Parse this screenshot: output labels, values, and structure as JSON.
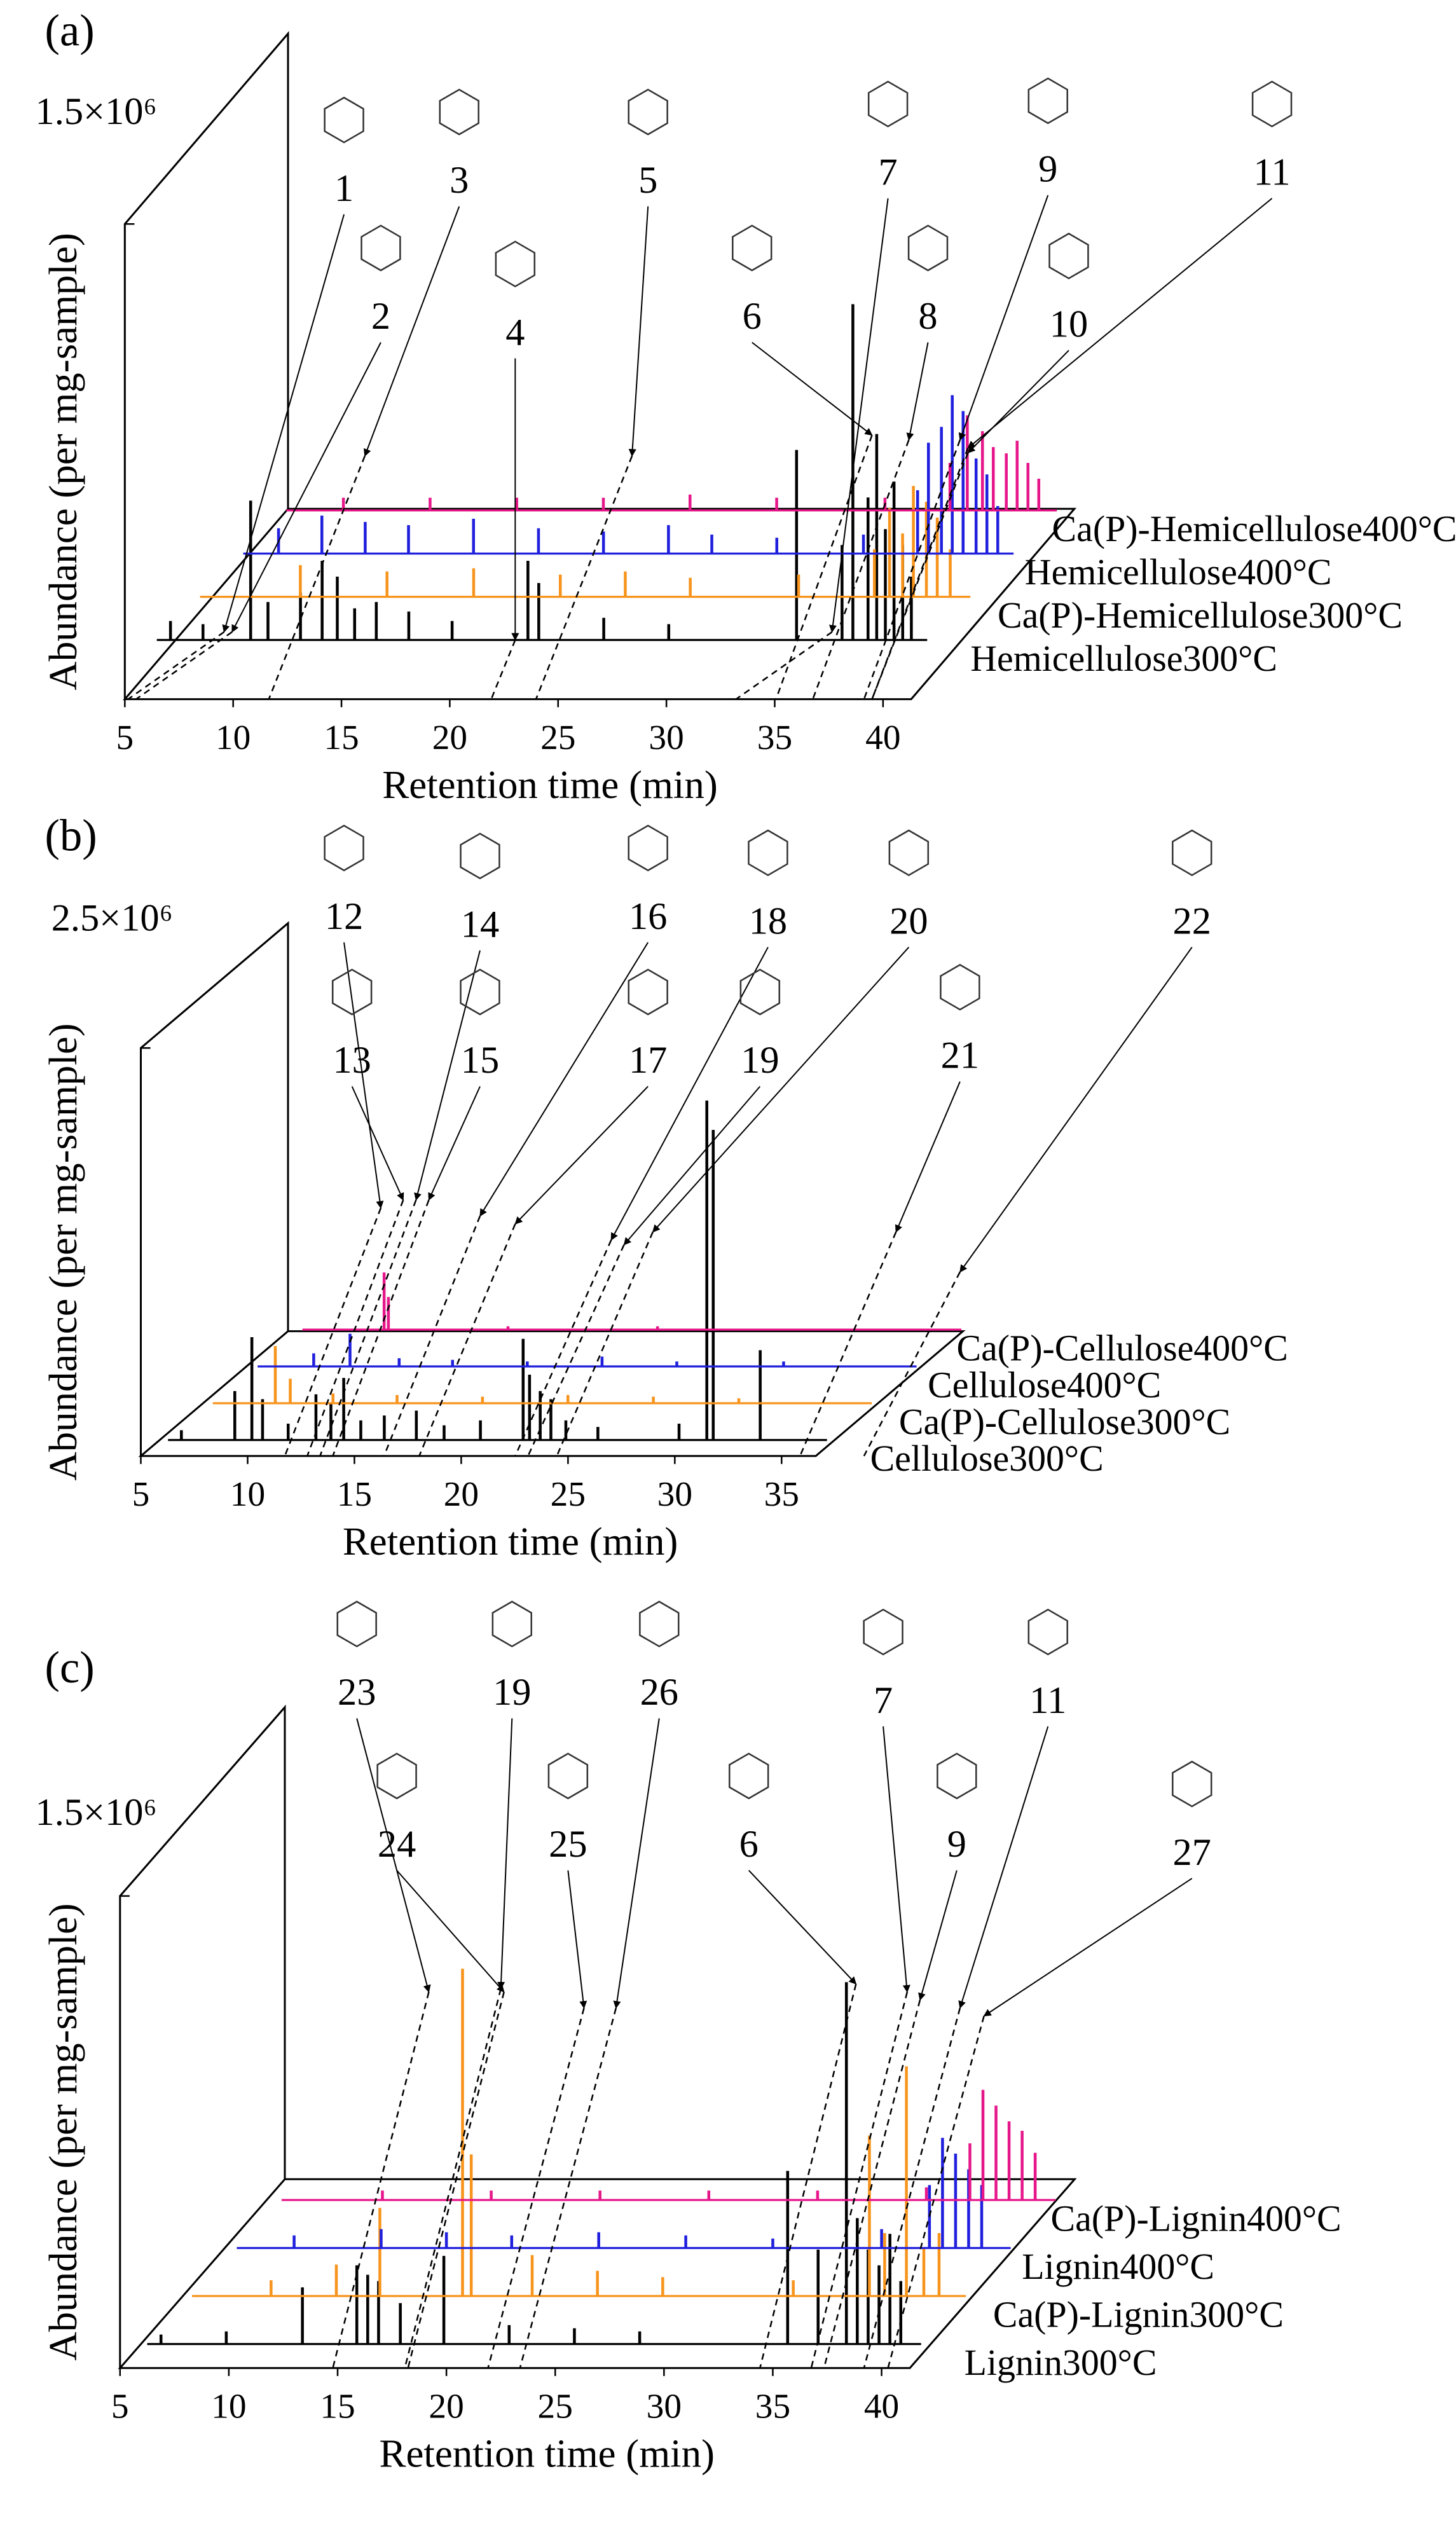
{
  "chart_data": [
    {
      "type": "waterfall",
      "panel": "(a)",
      "xlabel": "Retention time (min)",
      "ylabel": "Abundance (per mg-sample)",
      "xlim": [
        5,
        41.3
      ],
      "xticks": [
        5,
        10,
        15,
        20,
        25,
        30,
        35,
        40
      ],
      "ylim": [
        0,
        1500000
      ],
      "yticks": [
        {
          "value": 1500000,
          "label": "1.5×10⁶"
        }
      ],
      "annotations": [
        "1",
        "2",
        "3",
        "4",
        "5",
        "6",
        "7",
        "8",
        "9",
        "10",
        "11"
      ],
      "series": [
        {
          "name": "Hemicellulose300°C",
          "color": "#000000",
          "x": [
            6,
            7.5,
            9.7,
            10.5,
            12,
            13,
            13.7,
            14.5,
            15.5,
            17,
            19,
            22.5,
            23,
            26,
            29,
            34.9,
            37.0,
            37.5,
            38.2,
            38.6,
            39.0,
            39.4,
            39.8,
            40.2
          ],
          "values": [
            60000,
            50000,
            440000,
            120000,
            150000,
            250000,
            200000,
            100000,
            120000,
            90000,
            60000,
            250000,
            180000,
            70000,
            50000,
            600000,
            300000,
            1060000,
            450000,
            650000,
            350000,
            500000,
            300000,
            200000
          ]
        },
        {
          "name": "Ca(P)-Hemicellulose300°C",
          "color": "#f7941d",
          "x": [
            10,
            14,
            18,
            22,
            25,
            28,
            33,
            36.5,
            37.2,
            37.8,
            38.3,
            38.9,
            39.4,
            40
          ],
          "values": [
            100000,
            80000,
            90000,
            70000,
            80000,
            60000,
            70000,
            150000,
            280000,
            200000,
            350000,
            300000,
            250000,
            150000
          ]
        },
        {
          "name": "Hemicellulose400°C",
          "color": "#1f1fdd",
          "x": [
            7,
            9,
            11,
            13,
            16,
            19,
            22,
            25,
            27,
            30,
            34,
            36.5,
            37,
            37.6,
            38.1,
            38.6,
            39.2,
            39.7,
            40.2
          ],
          "values": [
            80000,
            120000,
            100000,
            90000,
            110000,
            80000,
            70000,
            90000,
            60000,
            50000,
            60000,
            200000,
            350000,
            400000,
            500000,
            450000,
            300000,
            250000,
            150000
          ]
        },
        {
          "name": "Ca(P)-Hemicellulose400°C",
          "color": "#e6178a",
          "x": [
            8,
            12,
            16,
            20,
            24,
            28,
            33,
            36,
            36.8,
            37.5,
            38,
            38.6,
            39.1,
            39.6,
            40.1
          ],
          "values": [
            40000,
            40000,
            40000,
            40000,
            50000,
            40000,
            40000,
            150000,
            300000,
            250000,
            200000,
            180000,
            220000,
            150000,
            100000
          ]
        }
      ]
    },
    {
      "type": "waterfall",
      "panel": "(b)",
      "xlabel": "Retention time (min)",
      "ylabel": "Abundance (per mg-sample)",
      "xlim": [
        5,
        36.6
      ],
      "xticks": [
        5,
        10,
        15,
        20,
        25,
        30,
        35
      ],
      "ylim": [
        0,
        2500000
      ],
      "yticks": [
        {
          "value": 2500000,
          "label": "2.5×10⁶"
        }
      ],
      "annotations": [
        "12",
        "13",
        "14",
        "15",
        "16",
        "17",
        "18",
        "19",
        "20",
        "21",
        "22"
      ],
      "series": [
        {
          "name": "Cellulose300°C",
          "color": "#000000",
          "x": [
            6,
            8.5,
            9.3,
            9.8,
            11,
            12.3,
            13,
            13.6,
            14.4,
            15.5,
            17,
            18.3,
            20,
            22,
            22.3,
            22.8,
            23.3,
            24,
            25.5,
            29.3,
            30.6,
            30.9,
            33.1
          ],
          "values": [
            60000,
            300000,
            630000,
            250000,
            100000,
            280000,
            220000,
            380000,
            120000,
            150000,
            180000,
            90000,
            120000,
            620000,
            400000,
            300000,
            250000,
            120000,
            80000,
            100000,
            2080000,
            1900000,
            550000
          ]
        },
        {
          "name": "Ca(P)-Cellulose300°C",
          "color": "#f7941d",
          "x": [
            8.3,
            9,
            11,
            14,
            18,
            22,
            26,
            30
          ],
          "values": [
            350000,
            150000,
            60000,
            50000,
            40000,
            50000,
            40000,
            30000
          ]
        },
        {
          "name": "Cellulose400°C",
          "color": "#1f1fdd",
          "x": [
            8,
            9.7,
            12,
            14.5,
            18,
            21.5,
            25,
            30
          ],
          "values": [
            80000,
            200000,
            50000,
            40000,
            30000,
            60000,
            30000,
            30000
          ]
        },
        {
          "name": "Ca(P)-Cellulose400°C",
          "color": "#e6178a",
          "x": [
            9.2,
            9.4,
            15,
            22
          ],
          "values": [
            350000,
            200000,
            20000,
            20000
          ]
        }
      ]
    },
    {
      "type": "waterfall",
      "panel": "(c)",
      "xlabel": "Retention time (min)",
      "ylabel": "Abundance (per mg-sample)",
      "xlim": [
        5,
        41.3
      ],
      "xticks": [
        5,
        10,
        15,
        20,
        25,
        30,
        35,
        40
      ],
      "ylim": [
        0,
        1500000
      ],
      "yticks": [
        {
          "value": 1500000,
          "label": "1.5×10⁶"
        }
      ],
      "annotations": [
        "23",
        "24",
        "19",
        "25",
        "26",
        "6",
        "7",
        "9",
        "11",
        "27"
      ],
      "series": [
        {
          "name": "Lignin300°C",
          "color": "#000000",
          "x": [
            6,
            9,
            12.5,
            15,
            15.5,
            16,
            17,
            19,
            22,
            25,
            28,
            34.8,
            36.2,
            37.5,
            38,
            38.5,
            39,
            39.5,
            40
          ],
          "values": [
            30000,
            40000,
            180000,
            250000,
            220000,
            200000,
            130000,
            280000,
            60000,
            50000,
            40000,
            550000,
            300000,
            1150000,
            400000,
            300000,
            250000,
            350000,
            200000
          ]
        },
        {
          "name": "Ca(P)-Lignin300°C",
          "color": "#f7941d",
          "x": [
            9,
            12,
            14,
            17.8,
            18.2,
            21,
            24,
            27,
            33,
            36.5,
            37.2,
            38.2,
            39,
            39.7
          ],
          "values": [
            50000,
            100000,
            280000,
            1040000,
            450000,
            130000,
            80000,
            60000,
            50000,
            510000,
            200000,
            730000,
            150000,
            200000
          ]
        },
        {
          "name": "Lignin400°C",
          "color": "#1f1fdd",
          "x": [
            8,
            12,
            15,
            18,
            22,
            26,
            30,
            35,
            37.2,
            37.8,
            38.4,
            39,
            39.6
          ],
          "values": [
            40000,
            60000,
            50000,
            40000,
            50000,
            40000,
            30000,
            60000,
            200000,
            350000,
            300000,
            250000,
            200000
          ]
        },
        {
          "name": "Ca(P)-Lignin400°C",
          "color": "#e6178a",
          "x": [
            10,
            15,
            20,
            25,
            30,
            35,
            37,
            37.6,
            38.2,
            38.8,
            39.4,
            40
          ],
          "values": [
            30000,
            30000,
            30000,
            30000,
            30000,
            40000,
            180000,
            350000,
            300000,
            250000,
            220000,
            150000
          ]
        }
      ]
    }
  ]
}
